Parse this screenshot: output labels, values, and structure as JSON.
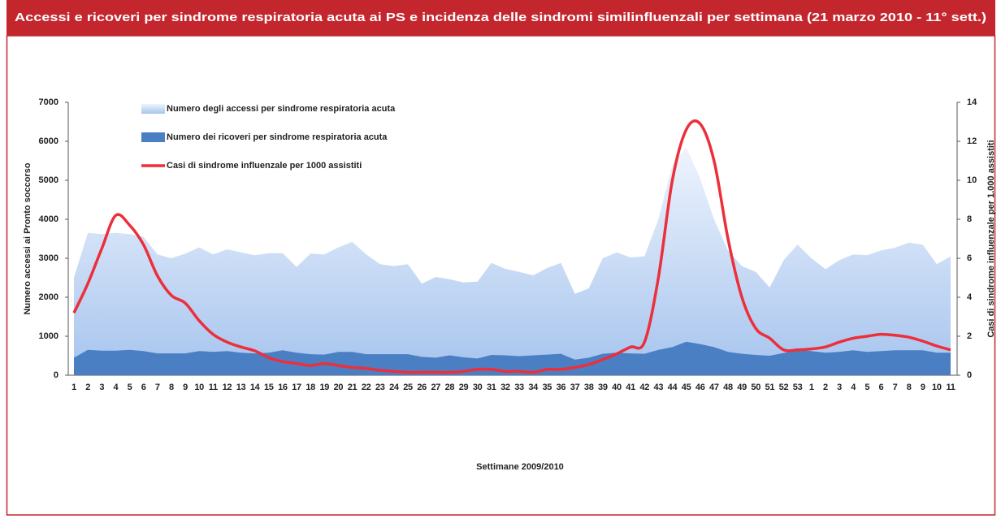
{
  "chart_data": {
    "type": "area-line",
    "title": "Accessi e ricoveri per sindrome respiratoria acuta ai PS e incidenza delle sindromi similinfluenzali per settimana (21 marzo 2010 - 11° sett.)",
    "xlabel": "Settimane 2009/2010",
    "ylabel": "Numero accessi ai Pronto soccorso",
    "y2label": "Casi di sindrome influenzale per 1.000 assistiti",
    "categories": [
      "1",
      "2",
      "3",
      "4",
      "5",
      "6",
      "7",
      "8",
      "9",
      "10",
      "11",
      "12",
      "13",
      "14",
      "15",
      "16",
      "17",
      "18",
      "19",
      "20",
      "21",
      "22",
      "23",
      "24",
      "25",
      "26",
      "27",
      "28",
      "29",
      "30",
      "31",
      "32",
      "33",
      "34",
      "35",
      "36",
      "37",
      "38",
      "39",
      "40",
      "41",
      "42",
      "43",
      "44",
      "45",
      "46",
      "47",
      "48",
      "49",
      "50",
      "51",
      "52",
      "53",
      "1",
      "2",
      "3",
      "4",
      "5",
      "6",
      "7",
      "8",
      "9",
      "10",
      "11"
    ],
    "series": [
      {
        "name": "Numero degli accessi per sindrome respiratoria acuta",
        "kind": "area",
        "color": "#c9dcf7",
        "values": [
          2500,
          3650,
          3620,
          3650,
          3620,
          3550,
          3100,
          3000,
          3120,
          3280,
          3100,
          3230,
          3150,
          3080,
          3130,
          3130,
          2780,
          3120,
          3100,
          3280,
          3420,
          3100,
          2850,
          2800,
          2850,
          2350,
          2520,
          2460,
          2380,
          2400,
          2880,
          2730,
          2650,
          2560,
          2750,
          2880,
          2090,
          2230,
          3000,
          3150,
          3020,
          3050,
          4000,
          5400,
          5850,
          5050,
          4000,
          3200,
          2800,
          2650,
          2250,
          2950,
          3350,
          3000,
          2720,
          2950,
          3100,
          3080,
          3200,
          3270,
          3400,
          3350,
          2850,
          3050
        ]
      },
      {
        "name": "Numero dei ricoveri per sindrome respiratoria acuta",
        "kind": "area",
        "color": "#4a7fc4",
        "values": [
          450,
          650,
          630,
          630,
          650,
          620,
          560,
          560,
          560,
          620,
          600,
          620,
          580,
          560,
          580,
          640,
          580,
          540,
          530,
          600,
          600,
          540,
          540,
          540,
          540,
          470,
          450,
          510,
          460,
          430,
          520,
          510,
          490,
          510,
          530,
          550,
          400,
          450,
          550,
          580,
          560,
          550,
          650,
          720,
          860,
          800,
          720,
          600,
          550,
          520,
          500,
          570,
          640,
          620,
          580,
          600,
          640,
          600,
          620,
          640,
          640,
          640,
          580,
          580
        ]
      },
      {
        "name": "Casi di sindrome influenzale per 1000 assistiti",
        "kind": "line",
        "axis": "y2",
        "color": "#ec2f3b",
        "values": [
          3.2,
          4.7,
          6.5,
          8.2,
          7.7,
          6.7,
          5.1,
          4.1,
          3.7,
          2.8,
          2.1,
          1.7,
          1.45,
          1.25,
          0.9,
          0.7,
          0.6,
          0.5,
          0.6,
          0.5,
          0.4,
          0.35,
          0.25,
          0.2,
          0.15,
          0.15,
          0.15,
          0.15,
          0.2,
          0.3,
          0.3,
          0.2,
          0.2,
          0.15,
          0.3,
          0.3,
          0.4,
          0.55,
          0.8,
          1.1,
          1.45,
          1.7,
          5.0,
          10.0,
          12.6,
          12.9,
          11.0,
          7.0,
          4.0,
          2.4,
          1.9,
          1.3,
          1.3,
          1.35,
          1.45,
          1.7,
          1.9,
          2.0,
          2.1,
          2.05,
          1.95,
          1.75,
          1.5,
          1.3
        ]
      }
    ],
    "ylim": [
      0,
      7000
    ],
    "yticks": [
      0,
      1000,
      2000,
      3000,
      4000,
      5000,
      6000,
      7000
    ],
    "y2lim": [
      0,
      14
    ],
    "y2ticks": [
      0,
      2,
      4,
      6,
      8,
      10,
      12,
      14
    ],
    "header_color": "#c4262e"
  }
}
